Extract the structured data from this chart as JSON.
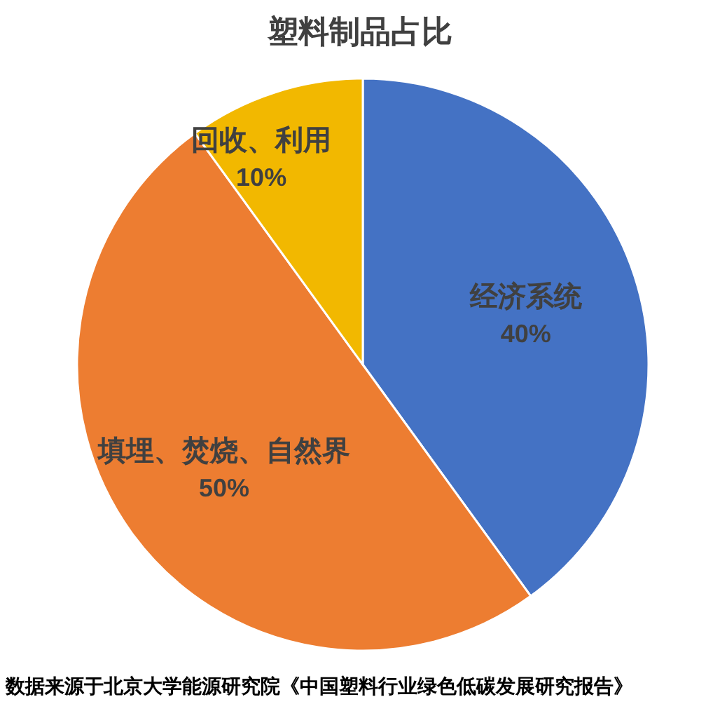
{
  "chart_data": {
    "type": "pie",
    "title": "塑料制品占比",
    "categories": [
      "经济系统",
      "填埋、焚烧、自然界",
      "回收、利用"
    ],
    "values": [
      40,
      50,
      10
    ],
    "colors": [
      "#4472c4",
      "#ed7d31",
      "#f2b800"
    ],
    "value_labels": [
      "40%",
      "50%",
      "10%"
    ],
    "annotations": [
      "数据来源于北京大学能源研究院《中国塑料行业绿色低碳发展研究报告》"
    ]
  }
}
